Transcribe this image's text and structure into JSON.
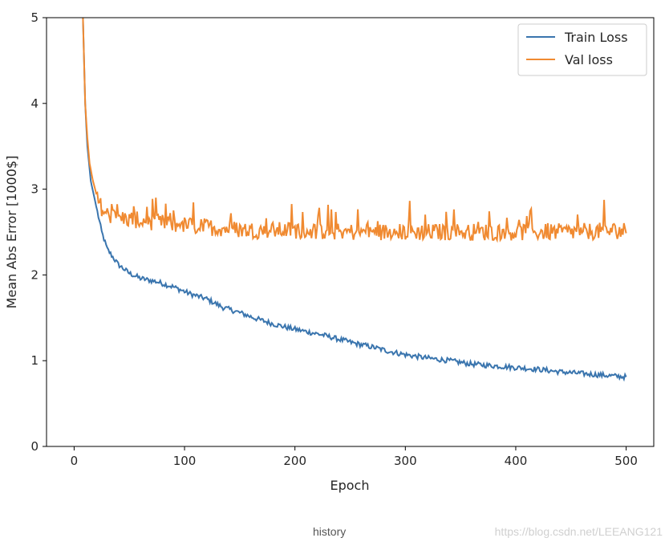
{
  "caption": "history",
  "watermark": "https://blog.csdn.net/LEEANG121",
  "colors": {
    "train": "#3a75ae",
    "val": "#f08a31",
    "axis": "#262626",
    "frame": "#000000"
  },
  "chart_data": {
    "type": "line",
    "title": "",
    "xlabel": "Epoch",
    "ylabel": "Mean Abs Error [1000$]",
    "xlim": [
      -25,
      525
    ],
    "ylim": [
      0,
      5
    ],
    "xticks": [
      0,
      100,
      200,
      300,
      400,
      500
    ],
    "yticks": [
      0,
      1,
      2,
      3,
      4,
      5
    ],
    "grid": false,
    "legend_position": "top-right",
    "series": [
      {
        "name": "Train Loss",
        "color": "#3a75ae",
        "points": [
          [
            8,
            5.0
          ],
          [
            9,
            4.5
          ],
          [
            10,
            4.0
          ],
          [
            12,
            3.5
          ],
          [
            15,
            3.1
          ],
          [
            20,
            2.8
          ],
          [
            25,
            2.5
          ],
          [
            30,
            2.3
          ],
          [
            40,
            2.12
          ],
          [
            50,
            2.02
          ],
          [
            60,
            1.96
          ],
          [
            75,
            1.92
          ],
          [
            90,
            1.86
          ],
          [
            105,
            1.78
          ],
          [
            120,
            1.72
          ],
          [
            135,
            1.62
          ],
          [
            150,
            1.56
          ],
          [
            165,
            1.49
          ],
          [
            180,
            1.43
          ],
          [
            195,
            1.38
          ],
          [
            210,
            1.34
          ],
          [
            225,
            1.3
          ],
          [
            240,
            1.25
          ],
          [
            255,
            1.2
          ],
          [
            270,
            1.16
          ],
          [
            285,
            1.11
          ],
          [
            300,
            1.07
          ],
          [
            320,
            1.03
          ],
          [
            340,
            1.0
          ],
          [
            360,
            0.96
          ],
          [
            380,
            0.94
          ],
          [
            400,
            0.92
          ],
          [
            420,
            0.9
          ],
          [
            440,
            0.87
          ],
          [
            460,
            0.85
          ],
          [
            480,
            0.83
          ],
          [
            500,
            0.81
          ]
        ]
      },
      {
        "name": "Val loss",
        "color": "#f08a31",
        "points": [
          [
            8,
            5.0
          ],
          [
            9,
            4.5
          ],
          [
            10,
            4.0
          ],
          [
            12,
            3.6
          ],
          [
            14,
            3.3
          ],
          [
            17,
            3.1
          ],
          [
            22,
            2.85
          ],
          [
            28,
            2.72
          ],
          [
            35,
            2.68
          ],
          [
            50,
            2.65
          ],
          [
            70,
            2.62
          ],
          [
            100,
            2.58
          ],
          [
            130,
            2.55
          ],
          [
            160,
            2.52
          ],
          [
            200,
            2.52
          ],
          [
            250,
            2.5
          ],
          [
            300,
            2.5
          ],
          [
            350,
            2.5
          ],
          [
            400,
            2.5
          ],
          [
            450,
            2.5
          ],
          [
            500,
            2.52
          ]
        ]
      }
    ]
  }
}
